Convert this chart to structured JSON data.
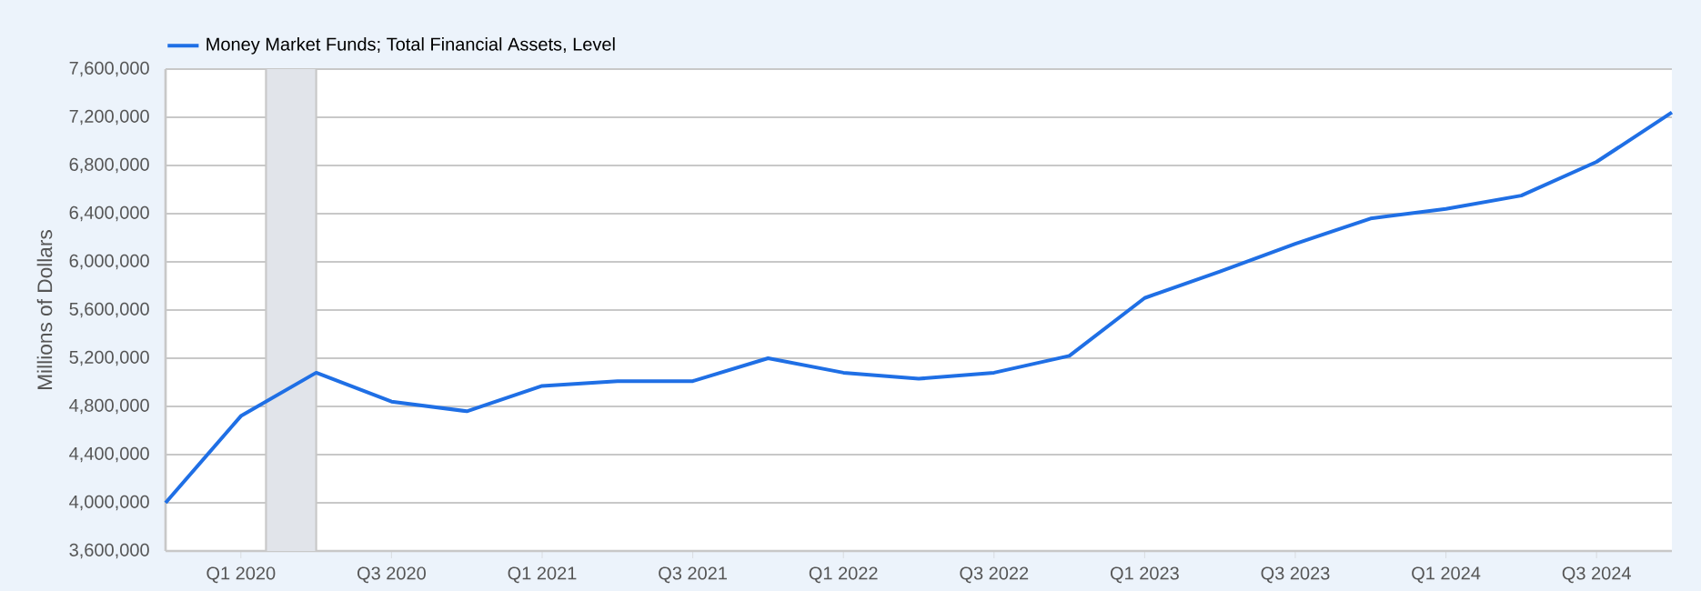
{
  "chart_data": {
    "type": "line",
    "x": [
      "2019-10",
      "2020-01",
      "2020-04",
      "2020-07",
      "2020-10",
      "2021-01",
      "2021-04",
      "2021-07",
      "2021-10",
      "2022-01",
      "2022-04",
      "2022-07",
      "2022-10",
      "2023-01",
      "2023-04",
      "2023-07",
      "2023-10",
      "2024-01",
      "2024-04",
      "2024-07",
      "2024-10"
    ],
    "series": [
      {
        "name": "Money Market Funds; Total Financial Assets, Level",
        "color": "#1f6fe5",
        "values": [
          4000000,
          4720000,
          5080000,
          4840000,
          4760000,
          4970000,
          5010000,
          5010000,
          5200000,
          5080000,
          5030000,
          5080000,
          5220000,
          5700000,
          5920000,
          6150000,
          6360000,
          6440000,
          6550000,
          6830000,
          7240000
        ]
      }
    ],
    "ylabel": "Millions of Dollars",
    "xlim": [
      "2019-10",
      "2024-10"
    ],
    "ylim": [
      3600000,
      7600000
    ],
    "xticks": [
      {
        "value": "2020-01",
        "label": "Q1 2020"
      },
      {
        "value": "2020-07",
        "label": "Q3 2020"
      },
      {
        "value": "2021-01",
        "label": "Q1 2021"
      },
      {
        "value": "2021-07",
        "label": "Q3 2021"
      },
      {
        "value": "2022-01",
        "label": "Q1 2022"
      },
      {
        "value": "2022-07",
        "label": "Q3 2022"
      },
      {
        "value": "2023-01",
        "label": "Q1 2023"
      },
      {
        "value": "2023-07",
        "label": "Q3 2023"
      },
      {
        "value": "2024-01",
        "label": "Q1 2024"
      },
      {
        "value": "2024-07",
        "label": "Q3 2024"
      }
    ],
    "yticks": [
      {
        "value": 3600000,
        "label": "3,600,000"
      },
      {
        "value": 4000000,
        "label": "4,000,000"
      },
      {
        "value": 4400000,
        "label": "4,400,000"
      },
      {
        "value": 4800000,
        "label": "4,800,000"
      },
      {
        "value": 5200000,
        "label": "5,200,000"
      },
      {
        "value": 5600000,
        "label": "5,600,000"
      },
      {
        "value": 6000000,
        "label": "6,000,000"
      },
      {
        "value": 6400000,
        "label": "6,400,000"
      },
      {
        "value": 6800000,
        "label": "6,800,000"
      },
      {
        "value": 7200000,
        "label": "7,200,000"
      },
      {
        "value": 7600000,
        "label": "7,600,000"
      }
    ],
    "bands": [
      {
        "axis": "x",
        "from": "2020-02",
        "to": "2020-04",
        "color": "#e1e4ea"
      }
    ],
    "grid": "y",
    "legend": "top left"
  }
}
